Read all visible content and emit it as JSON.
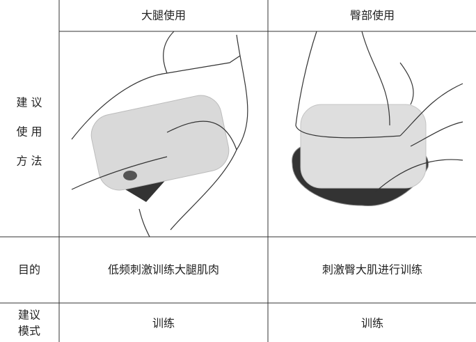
{
  "header": {
    "col1": "大腿使用",
    "col2": "臀部使用"
  },
  "rows": [
    {
      "label_lines": [
        "建 议",
        "使 用",
        "方 法"
      ]
    },
    {
      "label": "目的",
      "col1": "低频刺激训练大腿肌肉",
      "col2": "刺激臀大肌进行训练"
    },
    {
      "label_lines": [
        "建议",
        "模式"
      ],
      "col1": "训练",
      "col2": "训练"
    }
  ]
}
